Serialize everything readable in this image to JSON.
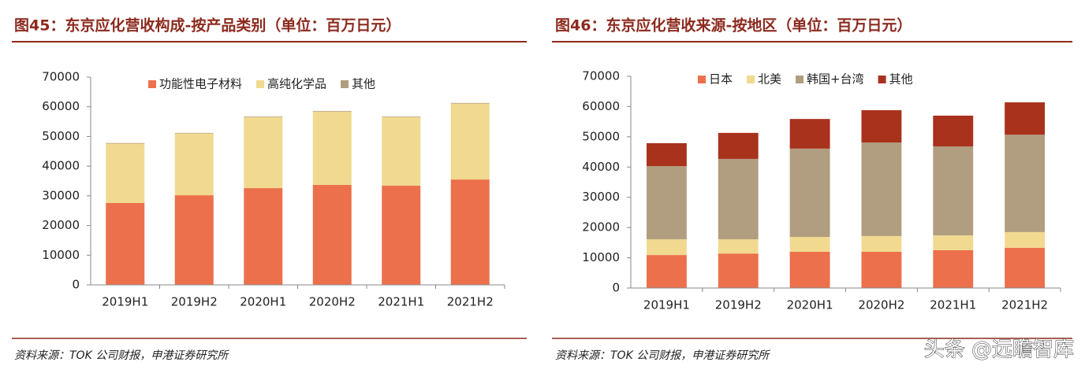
{
  "chart_data": [
    {
      "type": "stacked-bar",
      "title": "图45：东京应化营收构成-按产品类别（单位：百万日元）",
      "categories": [
        "2019H1",
        "2019H2",
        "2020H1",
        "2020H2",
        "2021H1",
        "2021H2"
      ],
      "series": [
        {
          "name": "功能性电子材料",
          "color": "#ec704c",
          "values": [
            27600,
            30200,
            32600,
            33700,
            33400,
            35500
          ]
        },
        {
          "name": "高纯化学品",
          "color": "#f1d990",
          "values": [
            20000,
            20800,
            23900,
            24700,
            23100,
            25600
          ]
        },
        {
          "name": "其他",
          "color": "#b19d7f",
          "values": [
            200,
            200,
            200,
            200,
            200,
            200
          ]
        }
      ],
      "ylim": [
        0,
        70000
      ],
      "yticks": [
        0,
        10000,
        20000,
        30000,
        40000,
        50000,
        60000,
        70000
      ],
      "grid": false
    },
    {
      "type": "stacked-bar",
      "title": "图46：东京应化营收来源-按地区（单位：百万日元）",
      "categories": [
        "2019H1",
        "2019H2",
        "2020H1",
        "2020H2",
        "2021H1",
        "2021H2"
      ],
      "series": [
        {
          "name": "日本",
          "color": "#ec704c",
          "values": [
            10900,
            11400,
            12000,
            12000,
            12500,
            13300
          ]
        },
        {
          "name": "北美",
          "color": "#f1d990",
          "values": [
            5200,
            4700,
            4900,
            5200,
            4900,
            5200
          ]
        },
        {
          "name": "韩国+台湾",
          "color": "#b19d7f",
          "values": [
            24200,
            26600,
            29200,
            30900,
            29400,
            32200
          ]
        },
        {
          "name": "其他",
          "color": "#a8321c",
          "values": [
            7600,
            8600,
            9800,
            10700,
            10200,
            10700
          ]
        }
      ],
      "ylim": [
        0,
        70000
      ],
      "yticks": [
        0,
        10000,
        20000,
        30000,
        40000,
        50000,
        60000,
        70000
      ],
      "grid": false
    }
  ],
  "sources": [
    "资料来源：TOK 公司财报，申港证券研究所",
    "资料来源：TOK 公司财报，申港证券研究所"
  ],
  "watermark": "头条 @远瞻智库"
}
